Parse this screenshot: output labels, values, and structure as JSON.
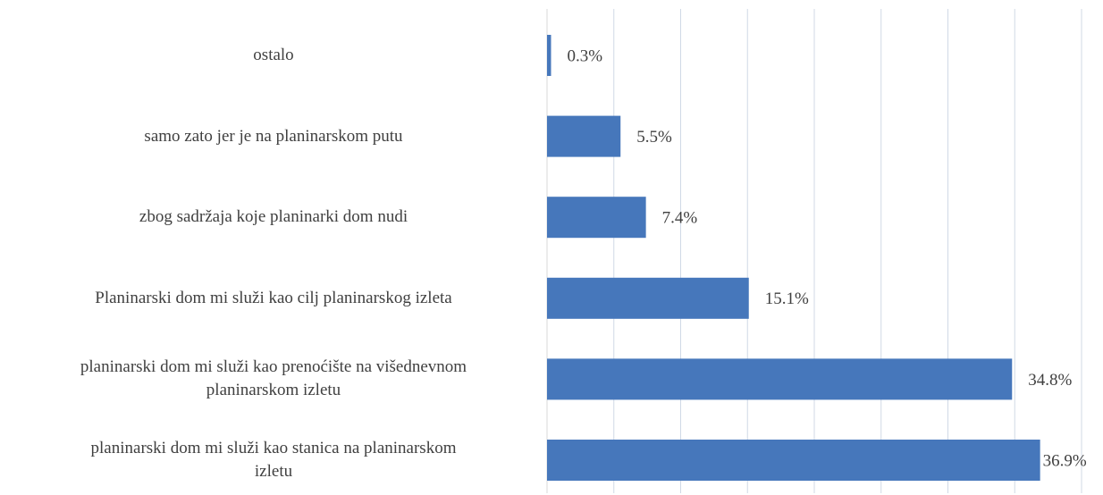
{
  "chart_data": {
    "type": "bar",
    "orientation": "horizontal",
    "categories": [
      "ostalo",
      "samo zato jer je na planinarskom putu",
      "zbog sadržaja koje planinarki dom nudi",
      "Planinarski dom mi služi kao cilj planinarskog izleta",
      "planinarski dom mi služi kao prenoćište na višednevnom\nplaninarskom izletu",
      "planinarski dom mi služi kao stanica na planinarskom\nizletu"
    ],
    "values": [
      0.3,
      5.5,
      7.4,
      15.1,
      34.8,
      36.9
    ],
    "value_labels": [
      "0.3%",
      "5.5%",
      "7.4%",
      "15.1%",
      "34.8%",
      "36.9%"
    ],
    "color": "#4677bb",
    "xlim": [
      0,
      40
    ],
    "xticks": [
      0,
      5,
      10,
      15,
      20,
      25,
      30,
      35,
      40
    ],
    "grid": true
  }
}
